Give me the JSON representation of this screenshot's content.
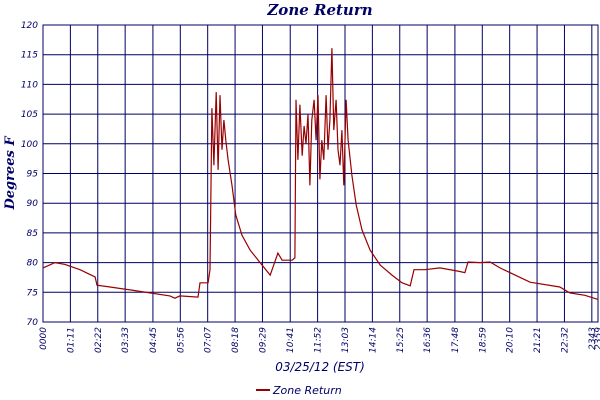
{
  "chart_data": {
    "type": "line",
    "title": "Zone Return",
    "x_label": "03/25/12 (EST)",
    "y_label": "Degrees F",
    "x": [
      0,
      31,
      57,
      96,
      135,
      140,
      174,
      226,
      277,
      329,
      342,
      355,
      402,
      407,
      428,
      433,
      438,
      443,
      449,
      454,
      459,
      464,
      469,
      474,
      480,
      490,
      500,
      516,
      537,
      563,
      589,
      594,
      609,
      620,
      646,
      653,
      656,
      661,
      666,
      672,
      677,
      682,
      687,
      692,
      697,
      703,
      708,
      713,
      718,
      723,
      728,
      734,
      739,
      744,
      749,
      754,
      760,
      765,
      770,
      775,
      780,
      786,
      791,
      801,
      812,
      827,
      848,
      874,
      905,
      931,
      952,
      962,
      990,
      1029,
      1081,
      1094,
      1102,
      1133,
      1159,
      1185,
      1224,
      1263,
      1340,
      1366,
      1405,
      1439
    ],
    "series": [
      {
        "name": "Zone Return",
        "color": "#990000",
        "values": [
          79.1,
          80.0,
          79.7,
          78.8,
          77.6,
          76.2,
          75.9,
          75.4,
          74.9,
          74.4,
          74.0,
          74.4,
          74.2,
          76.6,
          76.6,
          78.8,
          106,
          96.4,
          108.7,
          95.6,
          108.2,
          99,
          104,
          100.6,
          97.3,
          93,
          88,
          84.6,
          82.1,
          80,
          77.9,
          78.8,
          81.6,
          80.4,
          80.4,
          80.8,
          107.4,
          97.3,
          106.6,
          98,
          103,
          100,
          105,
          93,
          104,
          107.4,
          100.6,
          108.2,
          94,
          100.6,
          97.3,
          108.2,
          99,
          104,
          116.1,
          102.3,
          107.4,
          99,
          96.4,
          102.3,
          93,
          107.4,
          100.6,
          94.7,
          89.7,
          85.5,
          82.1,
          79.6,
          77.9,
          76.6,
          76.1,
          78.8,
          78.8,
          79.1,
          78.5,
          78.3,
          80.1,
          80,
          80.1,
          79.1,
          77.9,
          76.7,
          75.9,
          74.9,
          74.5,
          73.8
        ]
      }
    ],
    "xlim": [
      0,
      1439
    ],
    "ylim": [
      70,
      120
    ],
    "xticks": [
      {
        "value": 0,
        "label": "0000"
      },
      {
        "value": 71,
        "label": "01:11"
      },
      {
        "value": 142,
        "label": "02:22"
      },
      {
        "value": 213,
        "label": "03:33"
      },
      {
        "value": 285,
        "label": "04:45"
      },
      {
        "value": 356,
        "label": "05:56"
      },
      {
        "value": 427,
        "label": "07:07"
      },
      {
        "value": 498,
        "label": "08:18"
      },
      {
        "value": 569,
        "label": "09:29"
      },
      {
        "value": 641,
        "label": "10:41"
      },
      {
        "value": 712,
        "label": "11:52"
      },
      {
        "value": 783,
        "label": "13:03"
      },
      {
        "value": 854,
        "label": "14:14"
      },
      {
        "value": 925,
        "label": "15:25"
      },
      {
        "value": 996,
        "label": "16:36"
      },
      {
        "value": 1068,
        "label": "17:48"
      },
      {
        "value": 1139,
        "label": "18:59"
      },
      {
        "value": 1210,
        "label": "20:10"
      },
      {
        "value": 1281,
        "label": "21:21"
      },
      {
        "value": 1352,
        "label": "22:32"
      },
      {
        "value": 1423,
        "label": "2343"
      },
      {
        "value": 1439,
        "label": "2359"
      }
    ],
    "yticks": [
      70,
      75,
      80,
      85,
      90,
      95,
      100,
      105,
      110,
      115,
      120
    ],
    "grid": true
  }
}
